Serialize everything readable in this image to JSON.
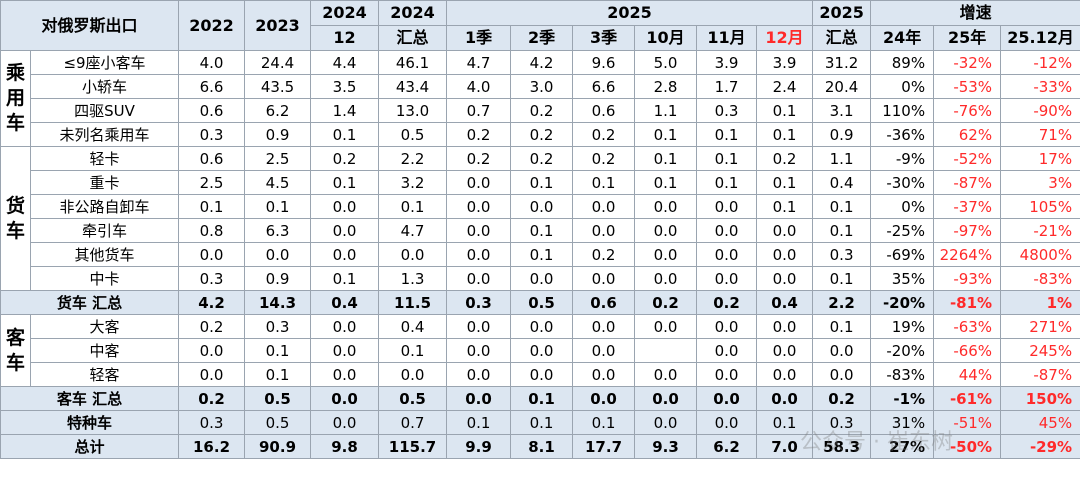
{
  "header": {
    "row1": [
      "对俄罗斯出口",
      "2022",
      "2023",
      "2024",
      "2024",
      "2025",
      "2025",
      "增速"
    ],
    "row2": [
      "12",
      "汇总",
      "1季",
      "2季",
      "3季",
      "10月",
      "11月",
      "12月",
      "汇总",
      "24年",
      "25年",
      "25.12月"
    ]
  },
  "body": [
    {
      "group": "乘用车",
      "rows": [
        {
          "label": "≤9座小客车",
          "cells": [
            "4.0",
            "24.4",
            "4.4",
            "46.1",
            "4.7",
            "4.2",
            "9.6",
            "5.0",
            "3.9",
            "3.9",
            "31.2",
            "89%",
            "-32%",
            "-12%"
          ]
        },
        {
          "label": "小轿车",
          "cells": [
            "6.6",
            "43.5",
            "3.5",
            "43.4",
            "4.0",
            "3.0",
            "6.6",
            "2.8",
            "1.7",
            "2.4",
            "20.4",
            "0%",
            "-53%",
            "-33%"
          ]
        },
        {
          "label": "四驱SUV",
          "cells": [
            "0.6",
            "6.2",
            "1.4",
            "13.0",
            "0.7",
            "0.2",
            "0.6",
            "1.1",
            "0.3",
            "0.1",
            "3.1",
            "110%",
            "-76%",
            "-90%"
          ]
        },
        {
          "label": "未列名乘用车",
          "cells": [
            "0.3",
            "0.9",
            "0.1",
            "0.5",
            "0.2",
            "0.2",
            "0.2",
            "0.1",
            "0.1",
            "0.1",
            "0.9",
            "-36%",
            "62%",
            "71%"
          ]
        }
      ]
    },
    {
      "group": "货车",
      "rows": [
        {
          "label": "轻卡",
          "cells": [
            "0.6",
            "2.5",
            "0.2",
            "2.2",
            "0.2",
            "0.2",
            "0.2",
            "0.1",
            "0.1",
            "0.2",
            "1.1",
            "-9%",
            "-52%",
            "17%"
          ]
        },
        {
          "label": "重卡",
          "cells": [
            "2.5",
            "4.5",
            "0.1",
            "3.2",
            "0.0",
            "0.1",
            "0.1",
            "0.1",
            "0.1",
            "0.1",
            "0.4",
            "-30%",
            "-87%",
            "3%"
          ]
        },
        {
          "label": "非公路自卸车",
          "cells": [
            "0.1",
            "0.1",
            "0.0",
            "0.1",
            "0.0",
            "0.0",
            "0.0",
            "0.0",
            "0.0",
            "0.1",
            "0.1",
            "0%",
            "-37%",
            "105%"
          ]
        },
        {
          "label": "牵引车",
          "cells": [
            "0.8",
            "6.3",
            "0.0",
            "4.7",
            "0.0",
            "0.1",
            "0.0",
            "0.0",
            "0.0",
            "0.0",
            "0.1",
            "-25%",
            "-97%",
            "-21%"
          ]
        },
        {
          "label": "其他货车",
          "cells": [
            "0.0",
            "0.0",
            "0.0",
            "0.0",
            "0.0",
            "0.1",
            "0.2",
            "0.0",
            "0.0",
            "0.0",
            "0.3",
            "-69%",
            "2264%",
            "4800%"
          ]
        },
        {
          "label": "中卡",
          "cells": [
            "0.3",
            "0.9",
            "0.1",
            "1.3",
            "0.0",
            "0.0",
            "0.0",
            "0.0",
            "0.0",
            "0.0",
            "0.1",
            "35%",
            "-93%",
            "-83%"
          ]
        }
      ]
    },
    {
      "label": "货车 汇总",
      "bold": true,
      "cells": [
        "4.2",
        "14.3",
        "0.4",
        "11.5",
        "0.3",
        "0.5",
        "0.6",
        "0.2",
        "0.2",
        "0.4",
        "2.2",
        "-20%",
        "-81%",
        "1%"
      ]
    },
    {
      "group": "客车",
      "rows": [
        {
          "label": "大客",
          "cells": [
            "0.2",
            "0.3",
            "0.0",
            "0.4",
            "0.0",
            "0.0",
            "0.0",
            "0.0",
            "0.0",
            "0.0",
            "0.1",
            "19%",
            "-63%",
            "271%"
          ]
        },
        {
          "label": "中客",
          "cells": [
            "0.0",
            "0.1",
            "0.0",
            "0.1",
            "0.0",
            "0.0",
            "0.0",
            null,
            "0.0",
            "0.0",
            "0.0",
            "-20%",
            "-66%",
            "245%"
          ]
        },
        {
          "label": "轻客",
          "cells": [
            "0.0",
            "0.1",
            "0.0",
            "0.0",
            "0.0",
            "0.0",
            "0.0",
            "0.0",
            "0.0",
            "0.0",
            "0.0",
            "-83%",
            "44%",
            "-87%"
          ]
        }
      ]
    },
    {
      "label": "客车 汇总",
      "bold": true,
      "cells": [
        "0.2",
        "0.5",
        "0.0",
        "0.5",
        "0.0",
        "0.1",
        "0.0",
        "0.0",
        "0.0",
        "0.0",
        "0.2",
        "-1%",
        "-61%",
        "150%"
      ]
    },
    {
      "label": "特种车",
      "bold": false,
      "cells": [
        "0.3",
        "0.5",
        "0.0",
        "0.7",
        "0.1",
        "0.1",
        "0.1",
        "0.0",
        "0.0",
        "0.1",
        "0.3",
        "31%",
        "-51%",
        "45%"
      ]
    },
    {
      "label": "总计",
      "bold": true,
      "cells": [
        "16.2",
        "90.9",
        "9.8",
        "115.7",
        "9.9",
        "8.1",
        "17.7",
        "9.3",
        "6.2",
        "7.0",
        "58.3",
        "27%",
        "-50%",
        "-29%"
      ]
    }
  ],
  "watermark": "公众号 · 崔东树"
}
